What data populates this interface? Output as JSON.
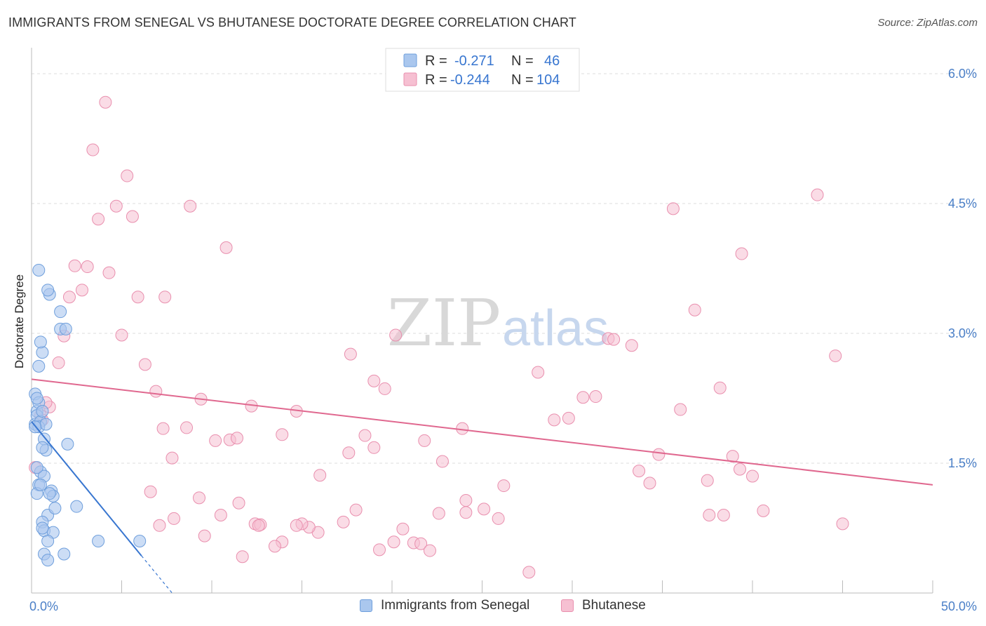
{
  "header": {
    "title": "IMMIGRANTS FROM SENEGAL VS BHUTANESE DOCTORATE DEGREE CORRELATION CHART",
    "source": "Source: ZipAtlas.com"
  },
  "watermark": {
    "zip": "ZIP",
    "atlas": "atlas"
  },
  "legend": {
    "rows": [
      {
        "r_label": "R =",
        "r_value": "-0.271",
        "n_label": "N =",
        "n_value": "46"
      },
      {
        "r_label": "R =",
        "r_value": "-0.244",
        "n_label": "N =",
        "n_value": "104"
      }
    ]
  },
  "bottom_legend": {
    "series1": "Immigrants from Senegal",
    "series2": "Bhutanese"
  },
  "colors": {
    "blue_fill": "#aac7ee",
    "blue_stroke": "#6f9fdc",
    "blue_line": "#3876d0",
    "pink_fill": "#f6c0d2",
    "pink_stroke": "#e98fae",
    "pink_line": "#e0688f",
    "tick_text": "#4a7fc7",
    "grid": "#dddddd"
  },
  "chart_data": {
    "type": "scatter",
    "title": "IMMIGRANTS FROM SENEGAL VS BHUTANESE DOCTORATE DEGREE CORRELATION CHART",
    "xlabel": "",
    "ylabel": "Doctorate Degree",
    "xlim": [
      0,
      50
    ],
    "ylim": [
      0,
      6.3
    ],
    "x_tick_labels": [
      {
        "value": 0,
        "label": "0.0%"
      },
      {
        "value": 50,
        "label": "50.0%"
      }
    ],
    "y_ticks": [
      {
        "value": 1.5,
        "label": "1.5%"
      },
      {
        "value": 3.0,
        "label": "3.0%"
      },
      {
        "value": 4.5,
        "label": "4.5%"
      },
      {
        "value": 6.0,
        "label": "6.0%"
      }
    ],
    "x_minor_ticks": [
      0,
      5,
      10,
      15,
      20,
      25,
      30,
      35,
      40,
      45,
      50
    ],
    "series": [
      {
        "name": "Immigrants from Senegal",
        "color": "blue",
        "r": -0.271,
        "n": 46,
        "trendline": {
          "x1": 0,
          "y1": 1.98,
          "x2": 6.1,
          "y2": 0.43,
          "dashed_to_x": 7.8,
          "dashed_to_y": 0.0
        },
        "points": [
          [
            0.2,
            1.95
          ],
          [
            0.3,
            2.1
          ],
          [
            0.2,
            2.3
          ],
          [
            0.4,
            2.2
          ],
          [
            0.3,
            2.05
          ],
          [
            0.5,
            1.98
          ],
          [
            0.6,
            2.1
          ],
          [
            0.4,
            1.92
          ],
          [
            0.8,
            1.95
          ],
          [
            0.7,
            1.78
          ],
          [
            0.8,
            1.65
          ],
          [
            0.6,
            1.68
          ],
          [
            0.5,
            1.4
          ],
          [
            0.7,
            1.35
          ],
          [
            0.4,
            1.25
          ],
          [
            0.3,
            1.15
          ],
          [
            1.1,
            1.18
          ],
          [
            1.2,
            1.12
          ],
          [
            0.9,
            0.9
          ],
          [
            1.3,
            0.98
          ],
          [
            0.6,
            0.82
          ],
          [
            0.7,
            0.72
          ],
          [
            1.2,
            0.7
          ],
          [
            0.9,
            0.6
          ],
          [
            0.7,
            0.45
          ],
          [
            0.9,
            0.38
          ],
          [
            1.8,
            0.45
          ],
          [
            2.0,
            1.72
          ],
          [
            2.5,
            1.0
          ],
          [
            3.7,
            0.6
          ],
          [
            6.0,
            0.6
          ],
          [
            0.4,
            2.62
          ],
          [
            0.6,
            2.78
          ],
          [
            0.5,
            2.9
          ],
          [
            1.6,
            3.05
          ],
          [
            1.9,
            3.05
          ],
          [
            1.6,
            3.25
          ],
          [
            1.0,
            3.45
          ],
          [
            0.9,
            3.5
          ],
          [
            0.4,
            3.73
          ],
          [
            0.2,
            1.92
          ],
          [
            0.3,
            1.45
          ],
          [
            0.5,
            1.25
          ],
          [
            0.6,
            0.75
          ],
          [
            0.3,
            2.25
          ],
          [
            1.0,
            1.15
          ]
        ]
      },
      {
        "name": "Bhutanese",
        "color": "pink",
        "r": -0.244,
        "n": 104,
        "trendline": {
          "x1": 0,
          "y1": 2.47,
          "x2": 50,
          "y2": 1.25
        },
        "points": [
          [
            0.2,
            1.45
          ],
          [
            0.5,
            2.05
          ],
          [
            1.0,
            2.15
          ],
          [
            0.8,
            2.2
          ],
          [
            0.6,
            2.0
          ],
          [
            4.1,
            5.67
          ],
          [
            3.4,
            5.12
          ],
          [
            5.3,
            4.82
          ],
          [
            4.7,
            4.47
          ],
          [
            3.7,
            4.32
          ],
          [
            5.6,
            4.35
          ],
          [
            8.8,
            4.47
          ],
          [
            10.8,
            3.99
          ],
          [
            2.4,
            3.78
          ],
          [
            3.1,
            3.77
          ],
          [
            4.3,
            3.7
          ],
          [
            2.8,
            3.5
          ],
          [
            2.1,
            3.42
          ],
          [
            5.9,
            3.42
          ],
          [
            7.4,
            3.42
          ],
          [
            1.8,
            2.97
          ],
          [
            5.0,
            2.98
          ],
          [
            1.5,
            2.66
          ],
          [
            6.3,
            2.64
          ],
          [
            6.9,
            2.33
          ],
          [
            9.4,
            2.24
          ],
          [
            12.2,
            2.16
          ],
          [
            14.7,
            2.1
          ],
          [
            7.3,
            1.9
          ],
          [
            8.6,
            1.91
          ],
          [
            10.2,
            1.76
          ],
          [
            11.0,
            1.77
          ],
          [
            11.4,
            1.79
          ],
          [
            13.9,
            1.83
          ],
          [
            17.6,
            1.62
          ],
          [
            17.7,
            2.76
          ],
          [
            18.5,
            1.82
          ],
          [
            19.0,
            1.68
          ],
          [
            19.0,
            2.45
          ],
          [
            19.6,
            2.36
          ],
          [
            20.2,
            2.98
          ],
          [
            21.8,
            1.76
          ],
          [
            22.8,
            1.52
          ],
          [
            23.9,
            1.9
          ],
          [
            24.1,
            0.93
          ],
          [
            22.6,
            0.92
          ],
          [
            21.2,
            0.58
          ],
          [
            20.6,
            0.74
          ],
          [
            20.1,
            0.59
          ],
          [
            19.3,
            0.5
          ],
          [
            18.0,
            0.96
          ],
          [
            17.3,
            0.82
          ],
          [
            16.0,
            1.36
          ],
          [
            15.9,
            0.7
          ],
          [
            15.4,
            0.76
          ],
          [
            15.0,
            0.8
          ],
          [
            14.7,
            0.78
          ],
          [
            13.9,
            0.59
          ],
          [
            12.4,
            0.8
          ],
          [
            12.7,
            0.79
          ],
          [
            13.5,
            0.54
          ],
          [
            12.6,
            0.78
          ],
          [
            11.7,
            0.42
          ],
          [
            11.5,
            1.04
          ],
          [
            10.5,
            0.9
          ],
          [
            9.6,
            0.66
          ],
          [
            9.3,
            1.1
          ],
          [
            7.1,
            0.78
          ],
          [
            7.9,
            0.86
          ],
          [
            7.8,
            1.56
          ],
          [
            6.6,
            1.17
          ],
          [
            21.6,
            0.57
          ],
          [
            22.1,
            0.49
          ],
          [
            24.1,
            1.07
          ],
          [
            25.1,
            0.97
          ],
          [
            25.9,
            0.86
          ],
          [
            26.2,
            1.24
          ],
          [
            27.6,
            0.24
          ],
          [
            28.1,
            2.55
          ],
          [
            29.0,
            2.0
          ],
          [
            29.8,
            2.02
          ],
          [
            30.6,
            2.26
          ],
          [
            31.3,
            2.27
          ],
          [
            32.0,
            2.94
          ],
          [
            32.3,
            2.93
          ],
          [
            33.3,
            2.86
          ],
          [
            33.7,
            1.41
          ],
          [
            34.3,
            1.27
          ],
          [
            34.8,
            1.6
          ],
          [
            35.6,
            4.44
          ],
          [
            36.0,
            2.12
          ],
          [
            36.8,
            3.27
          ],
          [
            37.5,
            1.3
          ],
          [
            37.6,
            0.9
          ],
          [
            38.2,
            2.37
          ],
          [
            38.4,
            0.9
          ],
          [
            38.9,
            1.58
          ],
          [
            39.3,
            1.43
          ],
          [
            39.4,
            3.92
          ],
          [
            40.0,
            1.35
          ],
          [
            40.6,
            0.95
          ],
          [
            43.6,
            4.6
          ],
          [
            44.6,
            2.74
          ],
          [
            45.0,
            0.8
          ]
        ]
      }
    ]
  }
}
